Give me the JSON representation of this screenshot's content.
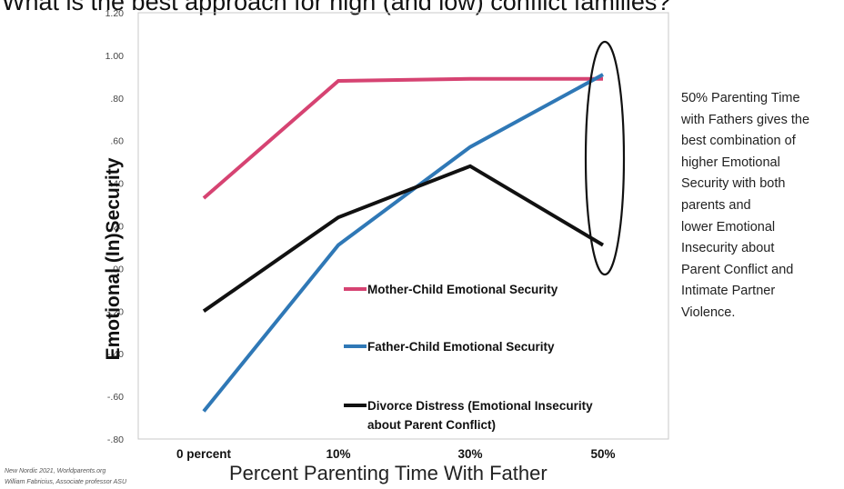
{
  "page": {
    "title": "What is the best approach for high (and low) conflict families?",
    "side_note": "50% Parenting Time\nwith Fathers gives the\nbest combination of\nhigher Emotional\nSecurity with both\nparents and\nlower Emotional\nInsecurity about\nParent Conflict and\nIntimate Partner\nViolence.",
    "credit_line1": "New Nordic 2021, Worldparents.org",
    "credit_line2": "William Fabricius, Associate professor ASU"
  },
  "chart_data": {
    "type": "line",
    "title": "",
    "xlabel": "Percent Parenting Time With Father",
    "ylabel": "Emotional (In)Security",
    "categories": [
      "0 percent",
      "10%",
      "30%",
      "50%"
    ],
    "ylim": [
      -0.8,
      1.2
    ],
    "yticks": [
      1.2,
      1.0,
      0.8,
      0.6,
      0.4,
      0.2,
      0.0,
      -0.2,
      -0.4,
      -0.6,
      -0.8
    ],
    "ytick_labels": [
      "1.20",
      "1.00",
      ".80",
      ".60",
      ".40",
      ".20",
      ".00",
      "-.20",
      "-.40",
      "-.60",
      "-.80"
    ],
    "grid": false,
    "series": [
      {
        "name": "Mother-Child Emotional Security",
        "values": [
          0.33,
          0.88,
          0.89,
          0.89
        ],
        "color": "#d64372"
      },
      {
        "name": "Father-Child Emotional Security",
        "values": [
          -0.67,
          0.11,
          0.57,
          0.91
        ],
        "color": "#2f78b6"
      },
      {
        "name": "Divorce Distress (Emotional Insecurity\nabout Parent Conflict)",
        "values": [
          -0.2,
          0.24,
          0.48,
          0.11
        ],
        "color": "#111111"
      }
    ],
    "legend_position": "lower-right inside plot",
    "annotation": "ellipse highlighting the 50% category"
  }
}
